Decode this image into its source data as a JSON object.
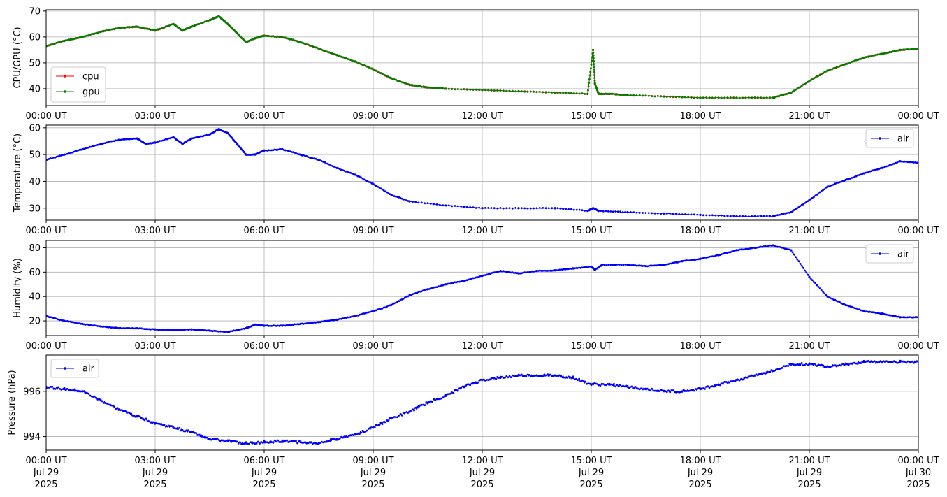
{
  "chart_data": [
    {
      "type": "line",
      "ylabel": "CPU/GPU (°C)",
      "xlim": [
        "2025-07-29T00:00",
        "2025-07-30T00:00"
      ],
      "ylim": [
        33.5,
        70.5
      ],
      "yticks": [
        40,
        50,
        60,
        70
      ],
      "grid": true,
      "legend": "bottom-left",
      "series": [
        {
          "name": "cpu",
          "color": "#ff0000",
          "x": [
            0,
            0.5,
            1,
            1.5,
            2,
            2.5,
            3,
            3.5,
            3.75,
            4,
            4.5,
            4.75,
            5,
            5.25,
            5.5,
            5.75,
            6,
            6.5,
            7,
            7.5,
            8,
            8.5,
            9,
            9.5,
            10,
            10.5,
            11,
            12,
            13,
            14,
            14.9,
            15.05,
            15.1,
            15.2,
            15.5,
            16,
            17,
            18,
            19,
            20,
            20.5,
            21,
            21.5,
            22,
            22.5,
            23,
            23.5,
            24
          ],
          "y": [
            56.5,
            58.5,
            60,
            62,
            63.5,
            64,
            62.5,
            65,
            62.5,
            64,
            66.5,
            68,
            65,
            61.5,
            58,
            59.5,
            60.5,
            60,
            58,
            55.5,
            53,
            50.5,
            47.5,
            44,
            41.5,
            40.5,
            40,
            39.5,
            39,
            38.5,
            38,
            55,
            42,
            38,
            38,
            37.5,
            37,
            36.5,
            36.5,
            36.5,
            38.5,
            43,
            47,
            49.5,
            52,
            53.5,
            55,
            55.5
          ]
        },
        {
          "name": "gpu",
          "color": "#008000",
          "x": [
            0,
            0.5,
            1,
            1.5,
            2,
            2.5,
            3,
            3.5,
            3.75,
            4,
            4.5,
            4.75,
            5,
            5.25,
            5.5,
            5.75,
            6,
            6.5,
            7,
            7.5,
            8,
            8.5,
            9,
            9.5,
            10,
            10.5,
            11,
            12,
            13,
            14,
            14.9,
            15.05,
            15.1,
            15.2,
            15.5,
            16,
            17,
            18,
            19,
            20,
            20.5,
            21,
            21.5,
            22,
            22.5,
            23,
            23.5,
            24
          ],
          "y": [
            56.5,
            58.5,
            60,
            62,
            63.5,
            64,
            62.5,
            65,
            62.5,
            64,
            66.5,
            68,
            65,
            61.5,
            58,
            59.5,
            60.5,
            60,
            58,
            55.5,
            53,
            50.5,
            47.5,
            44,
            41.5,
            40.5,
            40,
            39.5,
            39,
            38.5,
            38,
            55,
            42,
            38,
            38,
            37.5,
            37,
            36.5,
            36.5,
            36.5,
            38.5,
            43,
            47,
            49.5,
            52,
            53.5,
            55,
            55.5
          ]
        }
      ]
    },
    {
      "type": "line",
      "ylabel": "Temperature (°C)",
      "xlim": [
        "2025-07-29T00:00",
        "2025-07-30T00:00"
      ],
      "ylim": [
        25.5,
        61
      ],
      "yticks": [
        30,
        40,
        50,
        60
      ],
      "grid": true,
      "legend": "top-right",
      "series": [
        {
          "name": "air",
          "color": "#0000ff",
          "x": [
            0,
            0.5,
            1,
            1.5,
            2,
            2.5,
            2.75,
            3,
            3.5,
            3.75,
            4,
            4.5,
            4.75,
            5,
            5.25,
            5.5,
            5.75,
            6,
            6.5,
            7,
            7.5,
            8,
            8.5,
            9,
            9.5,
            10,
            11,
            12,
            13,
            14,
            14.9,
            15.05,
            15.2,
            16,
            17,
            18,
            19,
            20,
            20.5,
            21,
            21.5,
            22,
            22.5,
            23,
            23.5,
            24
          ],
          "y": [
            48,
            50,
            52,
            54,
            55.5,
            56,
            54,
            54.5,
            56.5,
            54,
            56,
            57.5,
            59.5,
            58,
            54,
            50,
            50,
            51.5,
            52,
            50,
            48,
            45,
            42.5,
            39,
            35,
            32.5,
            31,
            30,
            30,
            30,
            29,
            30,
            29,
            28.5,
            28,
            27.5,
            27,
            27,
            28.5,
            33,
            38,
            40.5,
            43,
            45,
            47.5,
            47
          ]
        }
      ]
    },
    {
      "type": "line",
      "ylabel": "Humidity (%)",
      "xlim": [
        "2025-07-29T00:00",
        "2025-07-30T00:00"
      ],
      "ylim": [
        8,
        86
      ],
      "yticks": [
        20,
        40,
        60,
        80
      ],
      "grid": true,
      "legend": "top-right",
      "series": [
        {
          "name": "air",
          "color": "#0000ff",
          "x": [
            0,
            0.5,
            1,
            1.5,
            2,
            2.5,
            3,
            3.5,
            4,
            4.5,
            5,
            5.5,
            5.75,
            6,
            6.5,
            7,
            7.5,
            8,
            8.5,
            9,
            9.5,
            10,
            10.5,
            11,
            11.5,
            12,
            12.5,
            13,
            13.5,
            14,
            14.5,
            15,
            15.1,
            15.3,
            16,
            16.5,
            17,
            17.5,
            18,
            18.5,
            19,
            19.5,
            20,
            20.5,
            21,
            21.5,
            22,
            22.5,
            23,
            23.5,
            24
          ],
          "y": [
            24,
            20,
            17.5,
            15.5,
            14,
            14,
            13,
            12.5,
            13,
            12,
            11,
            14,
            17,
            16,
            16,
            17.5,
            19,
            21,
            24,
            28,
            33,
            41,
            46,
            50,
            53,
            57,
            61,
            59,
            61,
            61.5,
            63,
            64.5,
            62,
            66,
            66,
            65,
            66,
            69,
            71,
            74,
            78,
            80,
            82,
            78,
            56,
            40,
            33,
            28,
            26,
            23,
            23
          ]
        }
      ]
    },
    {
      "type": "scatter",
      "ylabel": "Pressure (hPa)",
      "xlim": [
        "2025-07-29T00:00",
        "2025-07-30T00:00"
      ],
      "ylim": [
        993.4,
        997.6
      ],
      "yticks": [
        994,
        996
      ],
      "grid": true,
      "legend": "top-left",
      "series": [
        {
          "name": "air",
          "color": "#0000ff",
          "x": [
            0,
            0.5,
            1,
            1.5,
            2,
            2.5,
            3,
            3.5,
            4,
            4.5,
            5,
            5.5,
            6,
            6.5,
            7,
            7.5,
            8,
            8.5,
            9,
            9.5,
            10,
            10.5,
            11,
            11.5,
            12,
            12.5,
            13,
            13.5,
            14,
            14.5,
            15,
            15.5,
            16,
            16.5,
            17,
            17.5,
            18,
            18.5,
            19,
            19.5,
            20,
            20.5,
            21,
            21.5,
            22,
            22.5,
            23,
            23.5,
            24
          ],
          "y": [
            996.2,
            996.1,
            996.0,
            995.6,
            995.2,
            994.9,
            994.6,
            994.4,
            994.2,
            993.9,
            993.8,
            993.7,
            993.75,
            993.8,
            993.75,
            993.7,
            993.9,
            994.1,
            994.4,
            994.8,
            995.1,
            995.5,
            995.8,
            996.2,
            996.5,
            996.6,
            996.7,
            996.7,
            996.7,
            996.6,
            996.3,
            996.3,
            996.2,
            996.1,
            996.0,
            996.0,
            996.1,
            996.3,
            996.5,
            996.7,
            996.9,
            997.2,
            997.2,
            997.1,
            997.2,
            997.3,
            997.3,
            997.3,
            997.3
          ]
        }
      ]
    }
  ],
  "xaxis": {
    "ticks": [
      0,
      3,
      6,
      9,
      12,
      15,
      18,
      21,
      24
    ],
    "tick_labels": [
      "00:00 UT",
      "03:00 UT",
      "06:00 UT",
      "09:00 UT",
      "12:00 UT",
      "15:00 UT",
      "18:00 UT",
      "21:00 UT",
      "00:00 UT"
    ],
    "date_line1": [
      "Jul 29",
      "Jul 29",
      "Jul 29",
      "Jul 29",
      "Jul 29",
      "Jul 29",
      "Jul 29",
      "Jul 29",
      "Jul 30"
    ],
    "date_line2": [
      "2025",
      "2025",
      "2025",
      "2025",
      "2025",
      "2025",
      "2025",
      "2025",
      "2025"
    ]
  }
}
